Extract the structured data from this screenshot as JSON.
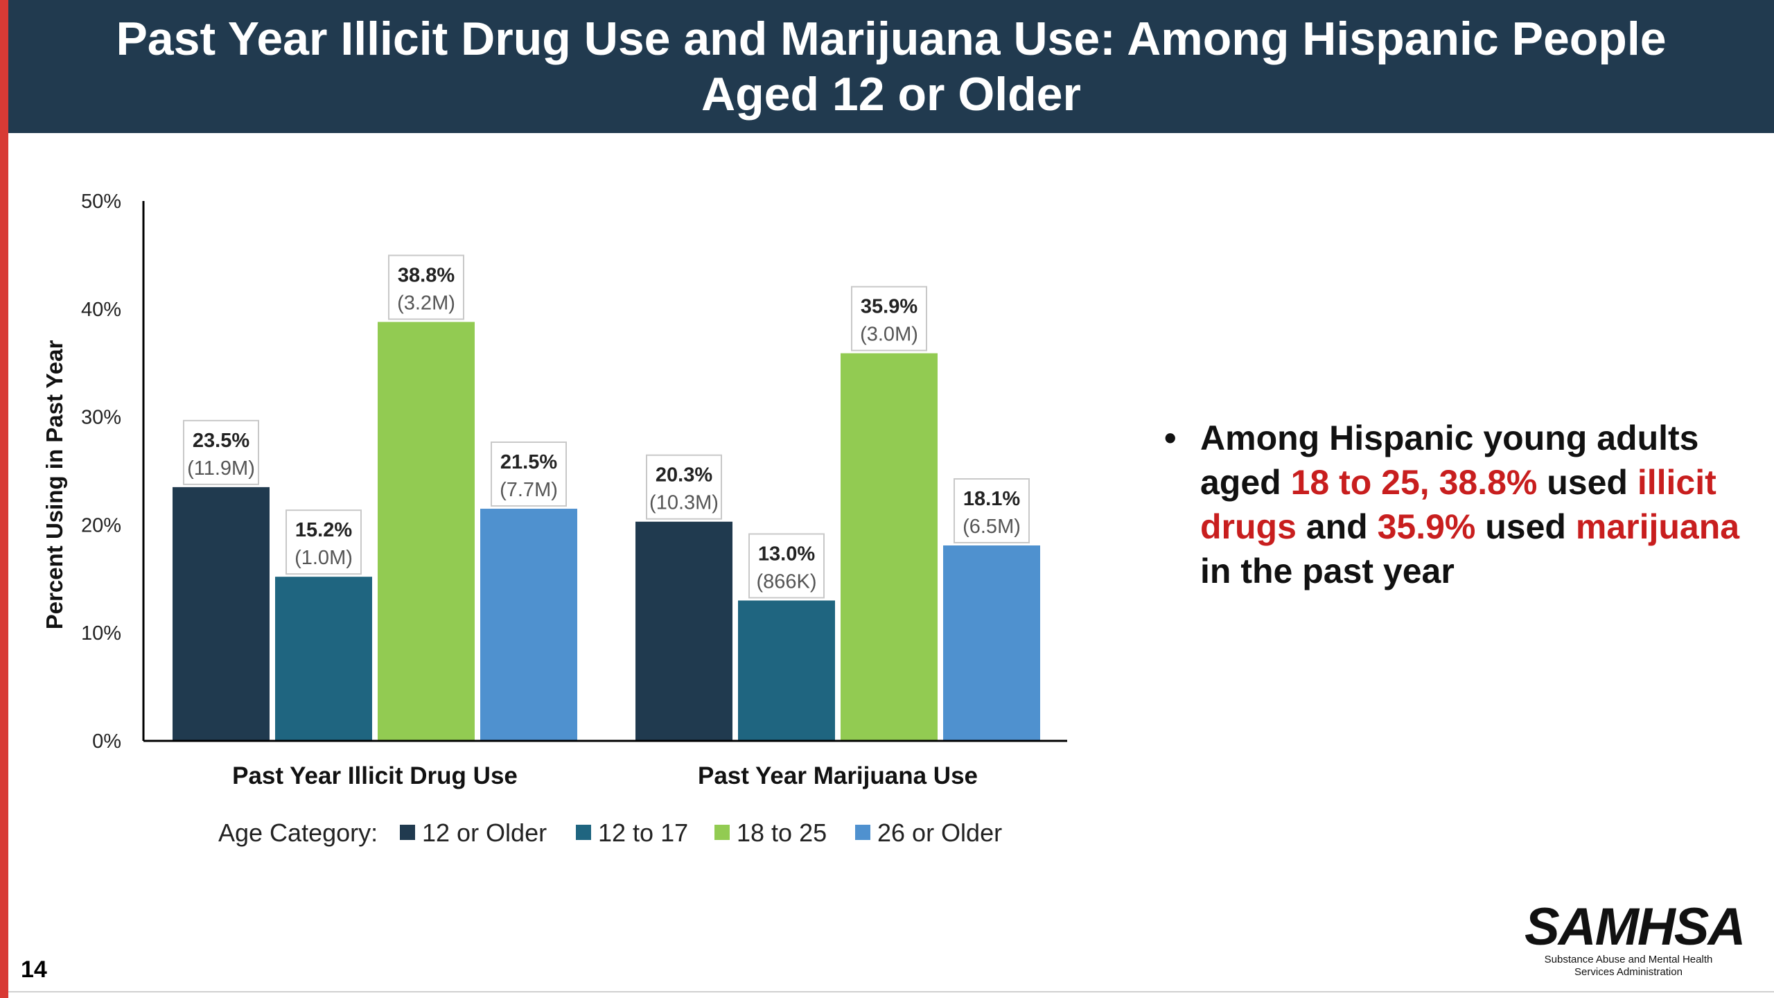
{
  "header": {
    "title": "Past Year Illicit Drug Use and Marijuana Use: Among Hispanic People Aged 12 or Older"
  },
  "chart_data": {
    "type": "bar",
    "ylabel": "Percent Using in Past Year",
    "xlabel": "",
    "ylim": [
      0,
      50
    ],
    "yticks": [
      "0%",
      "10%",
      "20%",
      "30%",
      "40%",
      "50%"
    ],
    "categories": [
      "Past Year Illicit Drug Use",
      "Past Year Marijuana Use"
    ],
    "legend_title": "Age Category:",
    "legend_position": "bottom",
    "grid": false,
    "series": [
      {
        "name": "12 or Older",
        "color": "#203a4f",
        "values": [
          23.5,
          20.3
        ],
        "labels": [
          "23.5%",
          "20.3%"
        ],
        "counts": [
          "(11.9M)",
          "(10.3M)"
        ]
      },
      {
        "name": "12 to 17",
        "color": "#1f6580",
        "values": [
          15.2,
          13.0
        ],
        "labels": [
          "15.2%",
          "13.0%"
        ],
        "counts": [
          "(1.0M)",
          "(866K)"
        ]
      },
      {
        "name": "18 to 25",
        "color": "#92cb52",
        "values": [
          38.8,
          35.9
        ],
        "labels": [
          "38.8%",
          "35.9%"
        ],
        "counts": [
          "(3.2M)",
          "(3.0M)"
        ]
      },
      {
        "name": "26 or Older",
        "color": "#4f91cf",
        "values": [
          21.5,
          18.1
        ],
        "labels": [
          "21.5%",
          "18.1%"
        ],
        "counts": [
          "(7.7M)",
          "(6.5M)"
        ]
      }
    ]
  },
  "bullet": {
    "t1": "Among Hispanic young adults aged ",
    "h1": "18 to 25, 38.8%",
    "t2": " used ",
    "h2": "illicit drugs",
    "t3": " and ",
    "h3": "35.9%",
    "t4": " used ",
    "h4": "marijuana",
    "t5": " in the past year"
  },
  "footer": {
    "page_number": "14",
    "logo_text": "SAMHSA",
    "logo_subtitle": "Substance Abuse and Mental Health Services Administration"
  }
}
